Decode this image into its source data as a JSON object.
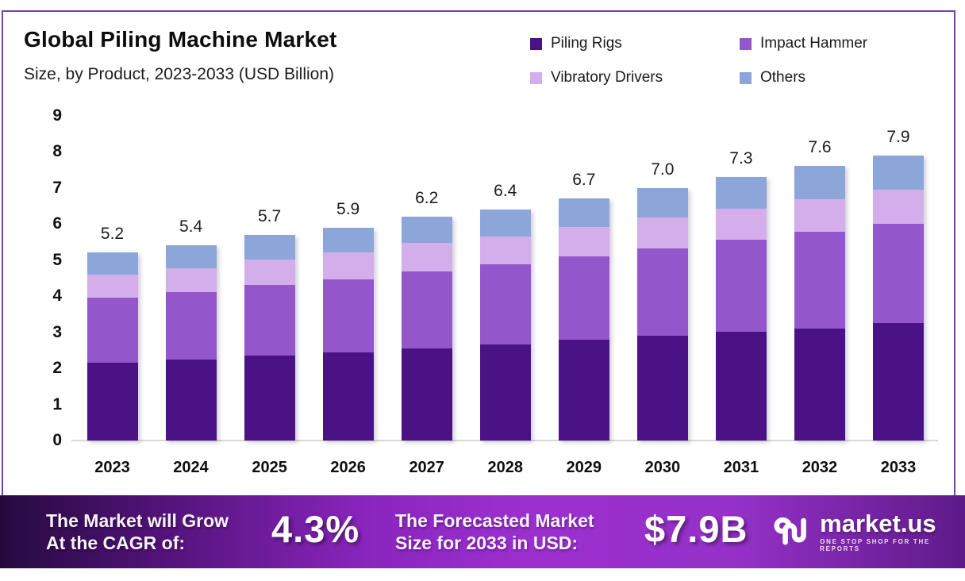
{
  "header": {
    "title": "Global Piling Machine Market",
    "subtitle": "Size, by Product, 2023-2033 (USD Billion)"
  },
  "legend": [
    {
      "key": "piling-rigs",
      "label": "Piling Rigs",
      "color": "#4b1286"
    },
    {
      "key": "impact-hammer",
      "label": "Impact Hammer",
      "color": "#9356cb"
    },
    {
      "key": "vibratory-drivers",
      "label": "Vibratory Drivers",
      "color": "#d4aeea"
    },
    {
      "key": "others",
      "label": "Others",
      "color": "#8ca6d9"
    }
  ],
  "chart_data": {
    "type": "bar",
    "stacked": true,
    "title": "Global Piling Machine Market Size, by Product, 2023-2033 (USD Billion)",
    "xlabel": "",
    "ylabel": "USD Billion",
    "ylim": [
      0,
      9
    ],
    "yticks": [
      0,
      1,
      2,
      3,
      4,
      5,
      6,
      7,
      8,
      9
    ],
    "grid": false,
    "legend_position": "top-right",
    "categories": [
      "2023",
      "2024",
      "2025",
      "2026",
      "2027",
      "2028",
      "2029",
      "2030",
      "2031",
      "2032",
      "2033"
    ],
    "series": [
      {
        "key": "piling-rigs",
        "name": "Piling Rigs",
        "color": "#4b1286",
        "values": [
          2.15,
          2.25,
          2.35,
          2.45,
          2.55,
          2.67,
          2.78,
          2.9,
          3.0,
          3.1,
          3.25
        ]
      },
      {
        "key": "impact-hammer",
        "name": "Impact Hammer",
        "color": "#9356cb",
        "values": [
          1.8,
          1.85,
          1.95,
          2.02,
          2.13,
          2.2,
          2.32,
          2.42,
          2.55,
          2.68,
          2.75
        ]
      },
      {
        "key": "vibratory-drivers",
        "name": "Vibratory Drivers",
        "color": "#d4aeea",
        "values": [
          0.65,
          0.68,
          0.7,
          0.73,
          0.8,
          0.78,
          0.82,
          0.85,
          0.87,
          0.9,
          0.95
        ]
      },
      {
        "key": "others",
        "name": "Others",
        "color": "#8ca6d9",
        "values": [
          0.6,
          0.62,
          0.7,
          0.7,
          0.72,
          0.75,
          0.78,
          0.83,
          0.88,
          0.92,
          0.95
        ]
      }
    ],
    "totals": [
      "5.2",
      "5.4",
      "5.7",
      "5.9",
      "6.2",
      "6.4",
      "6.7",
      "7.0",
      "7.3",
      "7.6",
      "7.9"
    ]
  },
  "footer": {
    "cagr_lines": [
      "The Market will Grow",
      "At the CAGR of:"
    ],
    "cagr_value": "4.3%",
    "forecast_lines": [
      "The Forecasted Market",
      "Size for 2033 in USD:"
    ],
    "forecast_value": "$7.9B",
    "brand_name": "market.us",
    "brand_tagline": "ONE STOP SHOP FOR THE REPORTS"
  },
  "colors": {
    "frame_border": "#7b3fa0",
    "axis_line": "#d8d8d8",
    "banner_gradient": [
      "#250a3e",
      "#4b1170",
      "#8a25bd",
      "#9c30cf",
      "#9531c9",
      "#5e1a88"
    ],
    "banner_text": "#ffffff",
    "background": "#ffffff"
  }
}
